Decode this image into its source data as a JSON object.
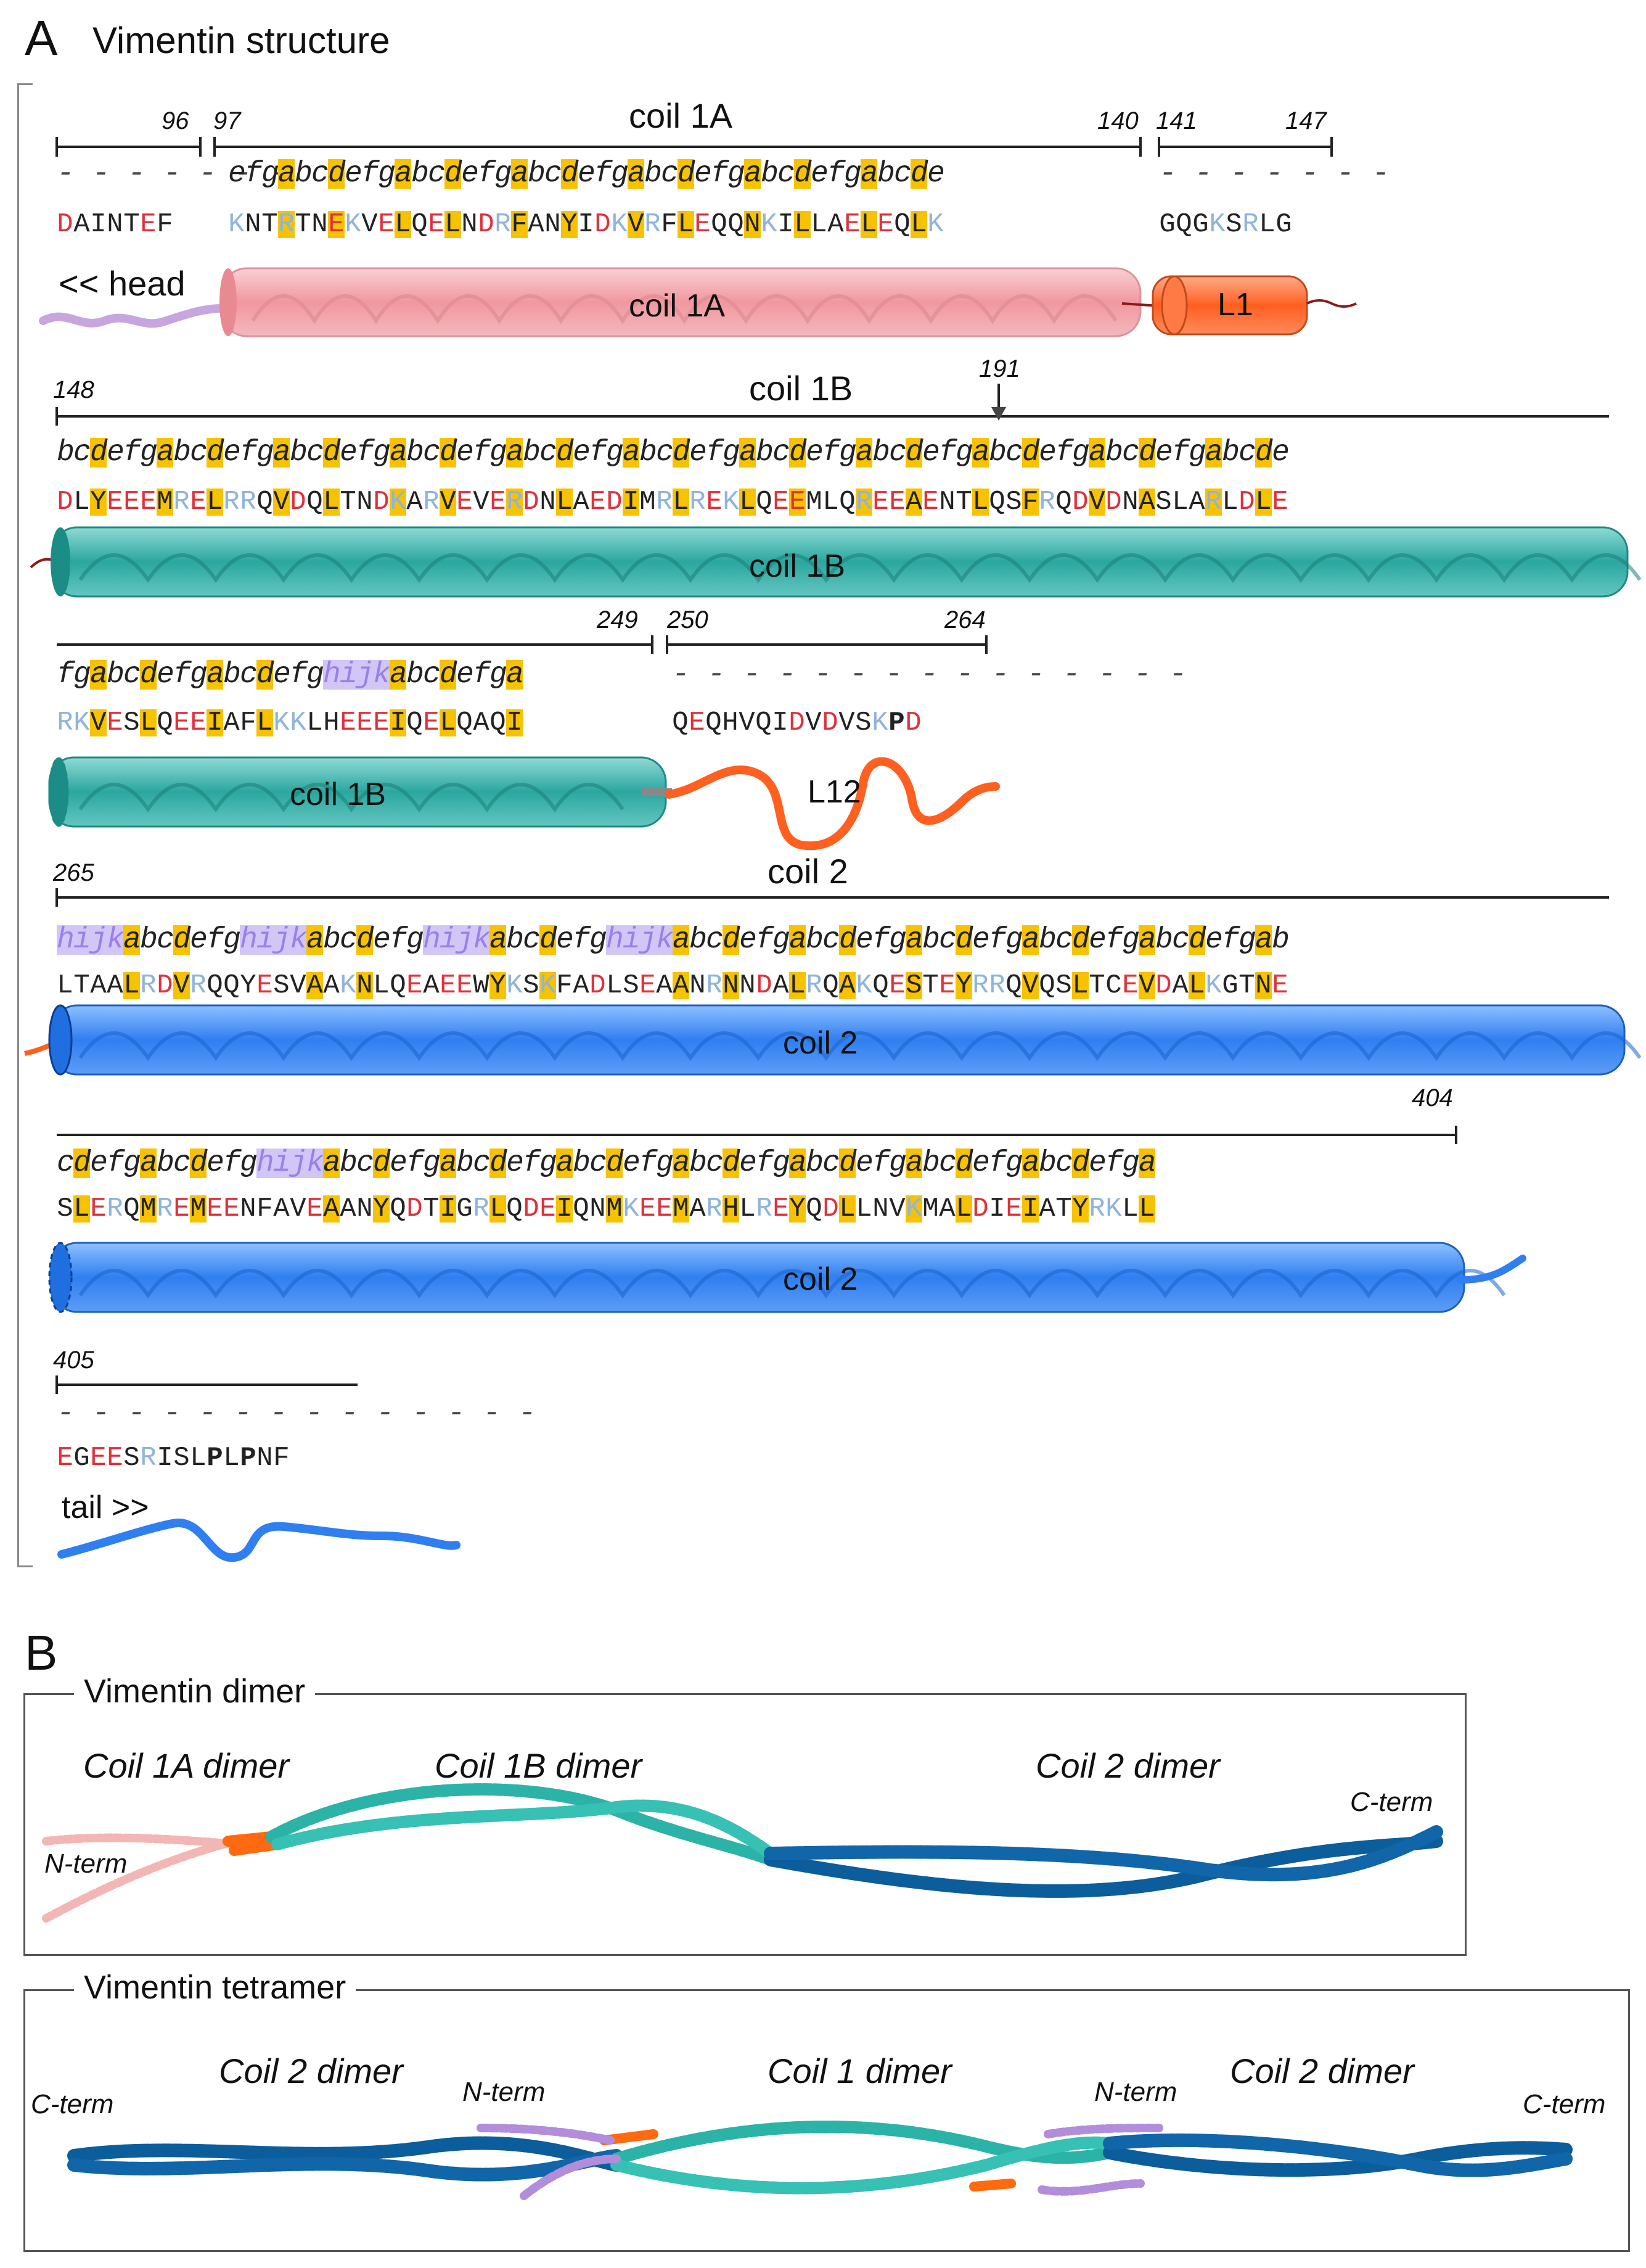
{
  "panel_a": {
    "letter": "A",
    "title": "Vimentin structure",
    "row1": {
      "num_96": "96",
      "num_97": "97",
      "num_140": "140",
      "num_141": "141",
      "num_147": "147",
      "region": "coil 1A",
      "heptad_dash_left": "- - - - - - -",
      "heptad": "efgabcdefgabcdefgabcdefgabcdefgabcdefgabcde",
      "heptad_dash_right": "- - - - - - -",
      "seq_left": "DAINTEF",
      "seq_mid": "KNTRTNEKVELQELNDRFANYIDKVRFLEQQNKILLAELEQLK",
      "seq_right": "GQGKSRLG",
      "head_label": "<< head",
      "coil_label": "coil 1A",
      "linker_label": "L1"
    },
    "row2": {
      "num_148": "148",
      "num_191": "191",
      "region": "coil 1B",
      "heptad": "bcdefgabcdefgabcdefgabcdefgabcdefgabcdefgabcdefgabcdefgabcdefgabcdefgabcde",
      "seq": "DLYEEEMRELRRQVDQLTNDKARVEVERDNLAEDIMRLREKLQEEMLQREEAENTLQSFRQDVDNASLARLDLE",
      "coil_label": "coil 1B"
    },
    "row3": {
      "num_249": "249",
      "num_250": "250",
      "num_264": "264",
      "heptad": "fgabcdefgabcdefghijkabcdefga",
      "heptad_dash": "- - - - - - - - - - - - - - -",
      "seq_left": "RKVESLQEEIAFLKKLHEEEIQELQAQI",
      "seq_right": "QEQHVQIDVDVSKPD",
      "coil_label": "coil 1B",
      "linker_label": "L12"
    },
    "row4": {
      "num_265": "265",
      "region": "coil 2",
      "heptad": "hijkabcdefghijkabcdefghijkabcdefghijkabcdefgabcdefgabcdefgabcdefgabcdefgab",
      "seq": "LTAALRDVRQQYESVAAKNLQEAEEWYKSKFADLSEAANRNNDALRQAKQESTEYRRQVQSLTCEVDALKGTNE",
      "coil_label": "coil 2"
    },
    "row5": {
      "num_404": "404",
      "heptad": "cdefgabcdefghijkabcdefgabcdefgabcdefgabcdefgabcdefgabcdefgabcdefga",
      "seq": "SLERQMREMEENFAVEAANYQDTIGRLQDEIQNMKEEMARHLREYQDLLNVKMALDIEIATYRKLL",
      "coil_label": "coil 2"
    },
    "row6": {
      "num_405": "405",
      "heptad_dash": "- - - - - - - - - - - - - -",
      "seq": "EGEESRISLPLPNF",
      "tail_label": "tail >>"
    }
  },
  "panel_b": {
    "letter": "B",
    "dimer": {
      "title": "Vimentin dimer",
      "coil1a": "Coil 1A dimer",
      "coil1b": "Coil 1B dimer",
      "coil2": "Coil 2 dimer",
      "nterm": "N-term",
      "cterm": "C-term"
    },
    "tetramer": {
      "title": "Vimentin tetramer",
      "coil2_left": "Coil 2 dimer",
      "coil1": "Coil 1 dimer",
      "coil2_right": "Coil 2 dimer",
      "cterm_left": "C-term",
      "nterm_left": "N-term",
      "nterm_right": "N-term",
      "cterm_right": "C-term"
    }
  },
  "colors": {
    "acidic": "#e0303a",
    "basic": "#8fb4dc",
    "neutral": "#222222",
    "core_highlight": "#f7c200",
    "stutter_highlight": "#9a80ea",
    "coil1a": "#f2a4aa",
    "linker": "#ff5f1f",
    "coil1b": "#2aa7a0",
    "coil2": "#2f7ff0",
    "head": "#c7a6df",
    "dimer_coil2": "#0b5d9c"
  }
}
